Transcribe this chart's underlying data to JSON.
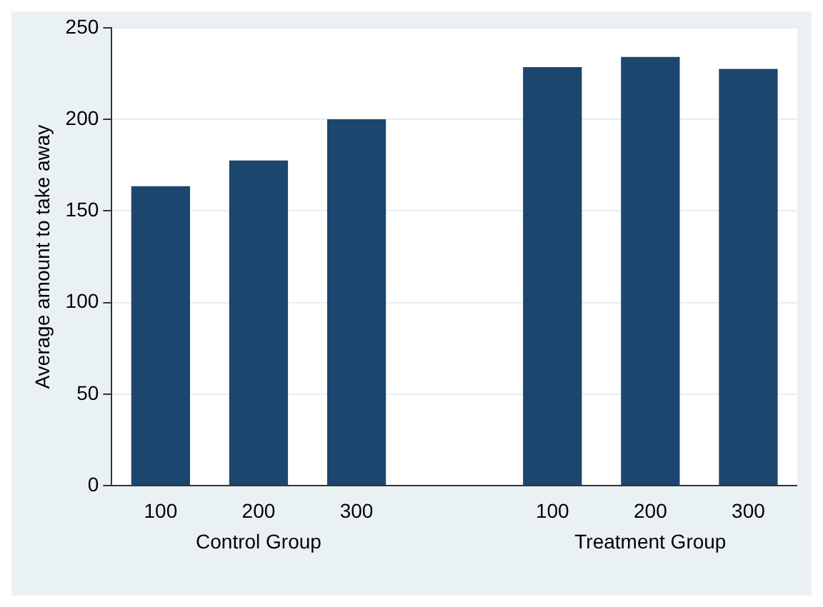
{
  "chart_data": {
    "type": "bar",
    "ylabel": "Average amount to take away",
    "categories": [
      "100",
      "200",
      "300",
      null,
      "100",
      "200",
      "300"
    ],
    "values": [
      163.5,
      177.5,
      200,
      null,
      228.5,
      234,
      227.5
    ],
    "color": "#1c466e",
    "ylim": [
      0,
      250
    ],
    "yticks": [
      0,
      50,
      100,
      150,
      200,
      250
    ],
    "grid": "y",
    "legend": false,
    "annotations": [
      "Control Group",
      "Treatment Group"
    ]
  }
}
